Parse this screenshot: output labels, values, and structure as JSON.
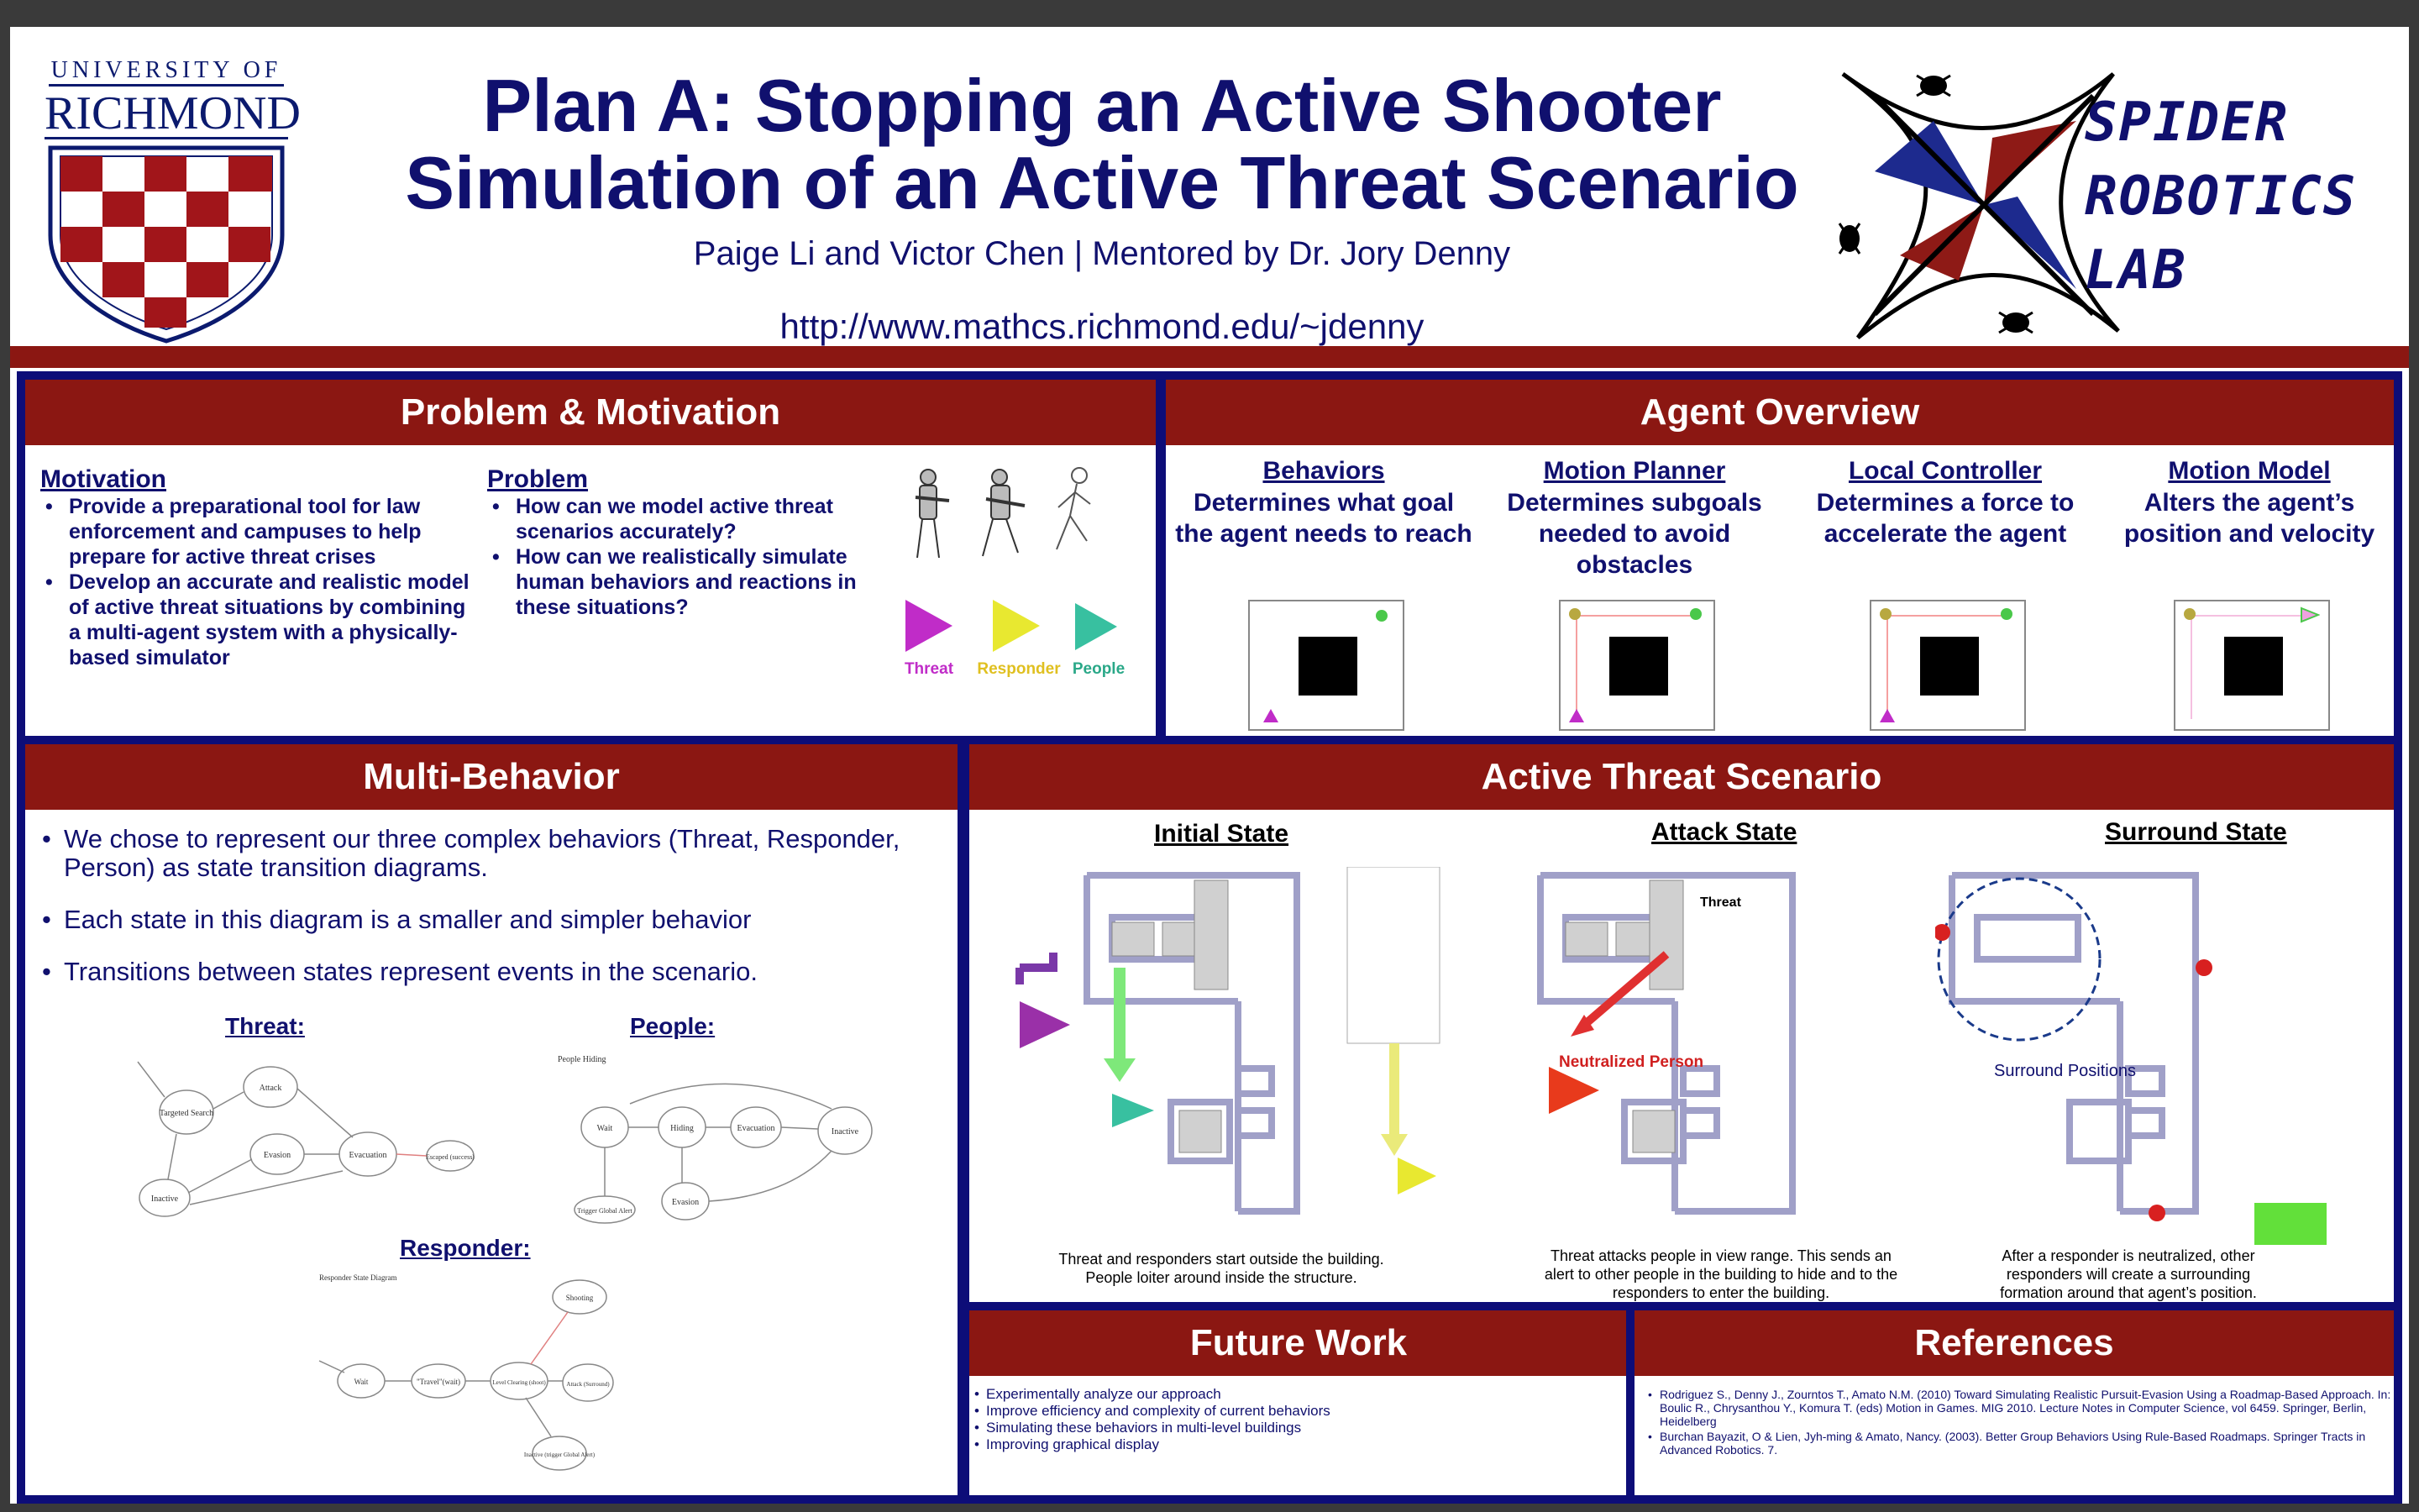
{
  "header": {
    "university_top": "UNIVERSITY OF",
    "university_name": "RICHMOND",
    "title_line1": "Plan A: Stopping an Active Shooter",
    "title_line2": "Simulation of an Active Threat Scenario",
    "authors": "Paige Li and Victor Chen | Mentored by Dr. Jory Denny",
    "url": "http://www.mathcs.richmond.edu/~jdenny",
    "lab_line1": "SPIDER",
    "lab_line2": "ROBOTICS",
    "lab_line3": "LAB"
  },
  "problem": {
    "heading": "Problem & Motivation",
    "motivation_title": "Motivation",
    "motivation_items": [
      "Provide a preparational tool for law enforcement and campuses to help prepare for active threat crises",
      "Develop an accurate and realistic model of active threat situations by combining a multi-agent system with a physically-based simulator"
    ],
    "problem_title": "Problem",
    "problem_items": [
      "How can we model active threat scenarios accurately?",
      "How can we realistically simulate human behaviors and reactions in these situations?"
    ],
    "legend": [
      {
        "label": "Threat",
        "color": "#c02cc8"
      },
      {
        "label": "Responder",
        "color": "#e8e830"
      },
      {
        "label": "People",
        "color": "#38c0a0"
      }
    ]
  },
  "agent": {
    "heading": "Agent Overview",
    "columns": [
      {
        "title": "Behaviors",
        "desc": "Determines what goal the agent needs to reach"
      },
      {
        "title": "Motion Planner",
        "desc": "Determines subgoals needed to avoid obstacles"
      },
      {
        "title": "Local Controller",
        "desc": "Determines a force to accelerate the agent"
      },
      {
        "title": "Motion Model",
        "desc": "Alters the agent’s position and velocity"
      }
    ]
  },
  "multi": {
    "heading": "Multi-Behavior",
    "bullets": [
      "We chose to represent our three complex behaviors (Threat, Responder, Person) as state transition diagrams.",
      "Each state in this diagram is a smaller and simpler behavior",
      "Transitions between states represent events in the scenario."
    ],
    "threat_title": "Threat:",
    "people_title": "People:",
    "responder_title": "Responder:",
    "threat_nodes": [
      "Targeted Search",
      "Attack",
      "Evasion",
      "Evacuation",
      "Escaped (success)",
      "Inactive"
    ],
    "people_nodes": [
      "Wait",
      "Hiding",
      "Evacuation",
      "Inactive",
      "Evasion",
      "Trigger Global Alert"
    ],
    "people_diagram_label": "People Hiding",
    "responder_nodes": [
      "Wait",
      "\"Travel\"(wait)",
      "Level Clearing (shoot)",
      "Attack (Surround)",
      "Shooting",
      "Inactive (trigger Global Alert)"
    ],
    "responder_diagram_label": "Responder State Diagram"
  },
  "ats": {
    "heading": "Active Threat Scenario",
    "states": [
      {
        "title": "Initial State",
        "caption": "Threat and responders start outside the building. People loiter around inside the structure."
      },
      {
        "title": "Attack State",
        "caption": "Threat attacks people in view range. This sends an alert to other people in the building to hide and to the responders to enter the building."
      },
      {
        "title": "Surround State",
        "caption": "After a responder is neutralized, other responders will create a surrounding formation around that agent’s position."
      }
    ],
    "threat_label": "Threat",
    "neutralized_label": "Neutralized Person",
    "surround_label": "Surround Positions"
  },
  "future": {
    "heading": "Future Work",
    "items": [
      "Experimentally analyze our approach",
      "Improve efficiency and complexity of current behaviors",
      "Simulating these behaviors in multi-level buildings",
      "Improving graphical display"
    ]
  },
  "references": {
    "heading": "References",
    "items": [
      "Rodriguez S., Denny J., Zourntos T., Amato N.M. (2010) Toward Simulating Realistic Pursuit-Evasion Using a Roadmap-Based Approach. In: Boulic R., Chrysanthou Y., Komura T. (eds) Motion in Games. MIG 2010. Lecture Notes in Computer Science, vol 6459. Springer, Berlin, Heidelberg",
      "Burchan Bayazit, O & Lien, Jyh-ming & Amato, Nancy. (2003). Better Group Behaviors Using Rule-Based Roadmaps. Springer Tracts in Advanced Robotics. 7."
    ]
  },
  "colors": {
    "navy": "#10106e",
    "crimson": "#8b1712",
    "threat": "#c02cc8",
    "responder": "#e8e830",
    "people": "#38c0a0"
  }
}
